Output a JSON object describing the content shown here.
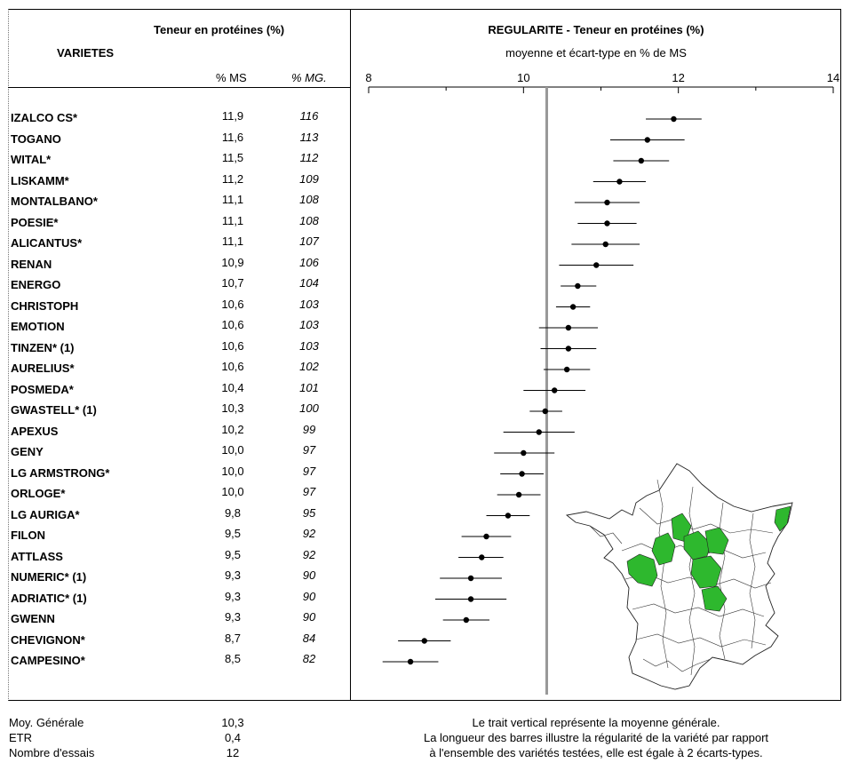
{
  "left_table": {
    "title": "Teneur en protéines (%)",
    "varietes_label": "VARIETES",
    "col_ms": "% MS",
    "col_mg": "% MG."
  },
  "chart_header": {
    "title": "REGULARITE - Teneur en protéines (%)",
    "subtitle": "moyenne et écart-type en % de MS"
  },
  "footer": {
    "labels": [
      {
        "label": "Moy. Générale",
        "value": "10,3"
      },
      {
        "label": "ETR",
        "value": "0,4"
      },
      {
        "label": "Nombre d'essais",
        "value": "12"
      }
    ],
    "notes": [
      "Le trait vertical représente la moyenne générale.",
      "La longueur des barres illustre la régularité de la variété par rapport",
      "à l'ensemble des variétés testées, elle est égale à 2 écarts-types."
    ]
  },
  "map": {
    "highlight_color": "#2eb82e",
    "icon": "france-map-icon"
  },
  "chart_data": {
    "type": "scatter",
    "xlim": [
      8,
      14
    ],
    "xticks": [
      "8",
      "10",
      "12",
      "14"
    ],
    "mean_line": 10.3,
    "grid": false,
    "error_bars": "±1 écart-type (barre = 2 écarts-types)",
    "varieties": [
      {
        "name": "IZALCO CS*",
        "ms": "11,9",
        "mg": "116",
        "mean": 11.94,
        "low": 11.58,
        "high": 12.3
      },
      {
        "name": "TOGANO",
        "ms": "11,6",
        "mg": "113",
        "mean": 11.6,
        "low": 11.12,
        "high": 12.08
      },
      {
        "name": "WITAL*",
        "ms": "11,5",
        "mg": "112",
        "mean": 11.52,
        "low": 11.16,
        "high": 11.88
      },
      {
        "name": "LISKAMM*",
        "ms": "11,2",
        "mg": "109",
        "mean": 11.24,
        "low": 10.9,
        "high": 11.58
      },
      {
        "name": "MONTALBANO*",
        "ms": "11,1",
        "mg": "108",
        "mean": 11.08,
        "low": 10.66,
        "high": 11.5
      },
      {
        "name": "POESIE*",
        "ms": "11,1",
        "mg": "108",
        "mean": 11.08,
        "low": 10.7,
        "high": 11.46
      },
      {
        "name": "ALICANTUS*",
        "ms": "11,1",
        "mg": "107",
        "mean": 11.06,
        "low": 10.62,
        "high": 11.5
      },
      {
        "name": "RENAN",
        "ms": "10,9",
        "mg": "106",
        "mean": 10.94,
        "low": 10.46,
        "high": 11.42
      },
      {
        "name": "ENERGO",
        "ms": "10,7",
        "mg": "104",
        "mean": 10.7,
        "low": 10.48,
        "high": 10.94
      },
      {
        "name": "CHRISTOPH",
        "ms": "10,6",
        "mg": "103",
        "mean": 10.64,
        "low": 10.42,
        "high": 10.86
      },
      {
        "name": "EMOTION",
        "ms": "10,6",
        "mg": "103",
        "mean": 10.58,
        "low": 10.2,
        "high": 10.96
      },
      {
        "name": "TINZEN* (1)",
        "ms": "10,6",
        "mg": "103",
        "mean": 10.58,
        "low": 10.22,
        "high": 10.94
      },
      {
        "name": "AURELIUS*",
        "ms": "10,6",
        "mg": "102",
        "mean": 10.56,
        "low": 10.26,
        "high": 10.86
      },
      {
        "name": "POSMEDA*",
        "ms": "10,4",
        "mg": "101",
        "mean": 10.4,
        "low": 10.0,
        "high": 10.8
      },
      {
        "name": "GWASTELL* (1)",
        "ms": "10,3",
        "mg": "100",
        "mean": 10.28,
        "low": 10.08,
        "high": 10.5
      },
      {
        "name": "APEXUS",
        "ms": "10,2",
        "mg": "99",
        "mean": 10.2,
        "low": 9.74,
        "high": 10.66
      },
      {
        "name": "GENY",
        "ms": "10,0",
        "mg": "97",
        "mean": 10.0,
        "low": 9.62,
        "high": 10.4
      },
      {
        "name": "LG ARMSTRONG*",
        "ms": "10,0",
        "mg": "97",
        "mean": 9.98,
        "low": 9.7,
        "high": 10.26
      },
      {
        "name": "ORLOGE*",
        "ms": "10,0",
        "mg": "97",
        "mean": 9.94,
        "low": 9.66,
        "high": 10.22
      },
      {
        "name": "LG AURIGA*",
        "ms": "9,8",
        "mg": "95",
        "mean": 9.8,
        "low": 9.52,
        "high": 10.08
      },
      {
        "name": "FILON",
        "ms": "9,5",
        "mg": "92",
        "mean": 9.52,
        "low": 9.2,
        "high": 9.84
      },
      {
        "name": "ATTLASS",
        "ms": "9,5",
        "mg": "92",
        "mean": 9.46,
        "low": 9.16,
        "high": 9.74
      },
      {
        "name": "NUMERIC* (1)",
        "ms": "9,3",
        "mg": "90",
        "mean": 9.32,
        "low": 8.92,
        "high": 9.72
      },
      {
        "name": "ADRIATIC* (1)",
        "ms": "9,3",
        "mg": "90",
        "mean": 9.32,
        "low": 8.86,
        "high": 9.78
      },
      {
        "name": "GWENN",
        "ms": "9,3",
        "mg": "90",
        "mean": 9.26,
        "low": 8.96,
        "high": 9.56
      },
      {
        "name": "CHEVIGNON*",
        "ms": "8,7",
        "mg": "84",
        "mean": 8.72,
        "low": 8.38,
        "high": 9.06
      },
      {
        "name": "CAMPESINO*",
        "ms": "8,5",
        "mg": "82",
        "mean": 8.54,
        "low": 8.18,
        "high": 8.9
      }
    ]
  }
}
